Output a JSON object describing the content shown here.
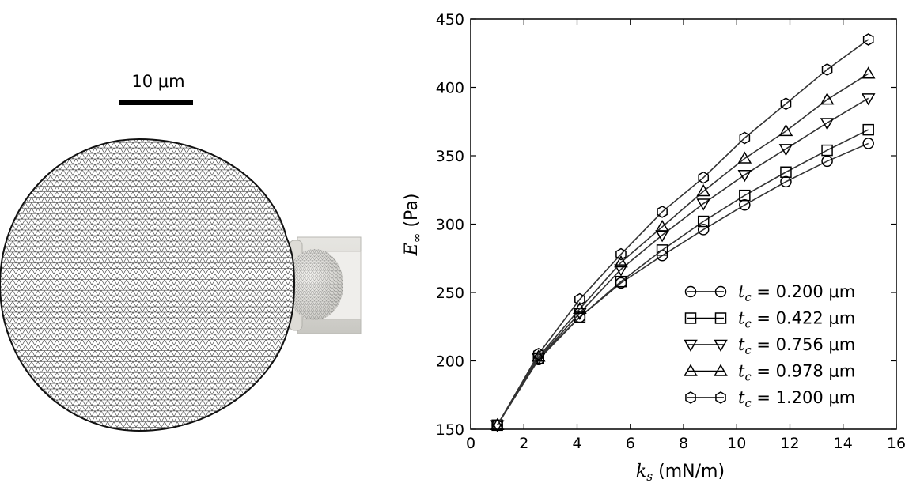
{
  "scale_bar": {
    "label": "10 μm"
  },
  "chart_data": {
    "type": "line",
    "xlabel": "k_s (mN/m)",
    "ylabel": "E_∞ (Pa)",
    "xlim": [
      0,
      16
    ],
    "ylim": [
      150,
      450
    ],
    "xticks": [
      0,
      2,
      4,
      6,
      8,
      10,
      12,
      14,
      16
    ],
    "yticks": [
      150,
      200,
      250,
      300,
      350,
      400,
      450
    ],
    "legend_position": "bottom-right",
    "x": [
      1.0,
      2.55,
      4.1,
      5.65,
      7.2,
      8.75,
      10.3,
      11.85,
      13.4,
      14.95
    ],
    "series": [
      {
        "name": "t_c = 0.200 μm",
        "marker": "circle",
        "values": [
          153,
          201,
          232,
          257,
          277,
          296,
          314,
          331,
          346,
          359
        ]
      },
      {
        "name": "t_c = 0.422 μm",
        "marker": "square",
        "values": [
          153,
          202,
          232,
          258,
          281,
          302,
          321,
          338,
          354,
          369
        ]
      },
      {
        "name": "t_c = 0.756 μm",
        "marker": "triangle-down",
        "values": [
          153,
          202,
          235,
          267,
          292,
          315,
          336,
          355,
          374,
          392
        ]
      },
      {
        "name": "t_c = 0.978 μm",
        "marker": "triangle-up",
        "values": [
          153,
          203,
          238,
          272,
          298,
          324,
          348,
          368,
          391,
          410
        ]
      },
      {
        "name": "t_c = 1.200 μm",
        "marker": "hexagon",
        "values": [
          153,
          205,
          245,
          278,
          309,
          334,
          363,
          388,
          413,
          435
        ]
      }
    ]
  }
}
